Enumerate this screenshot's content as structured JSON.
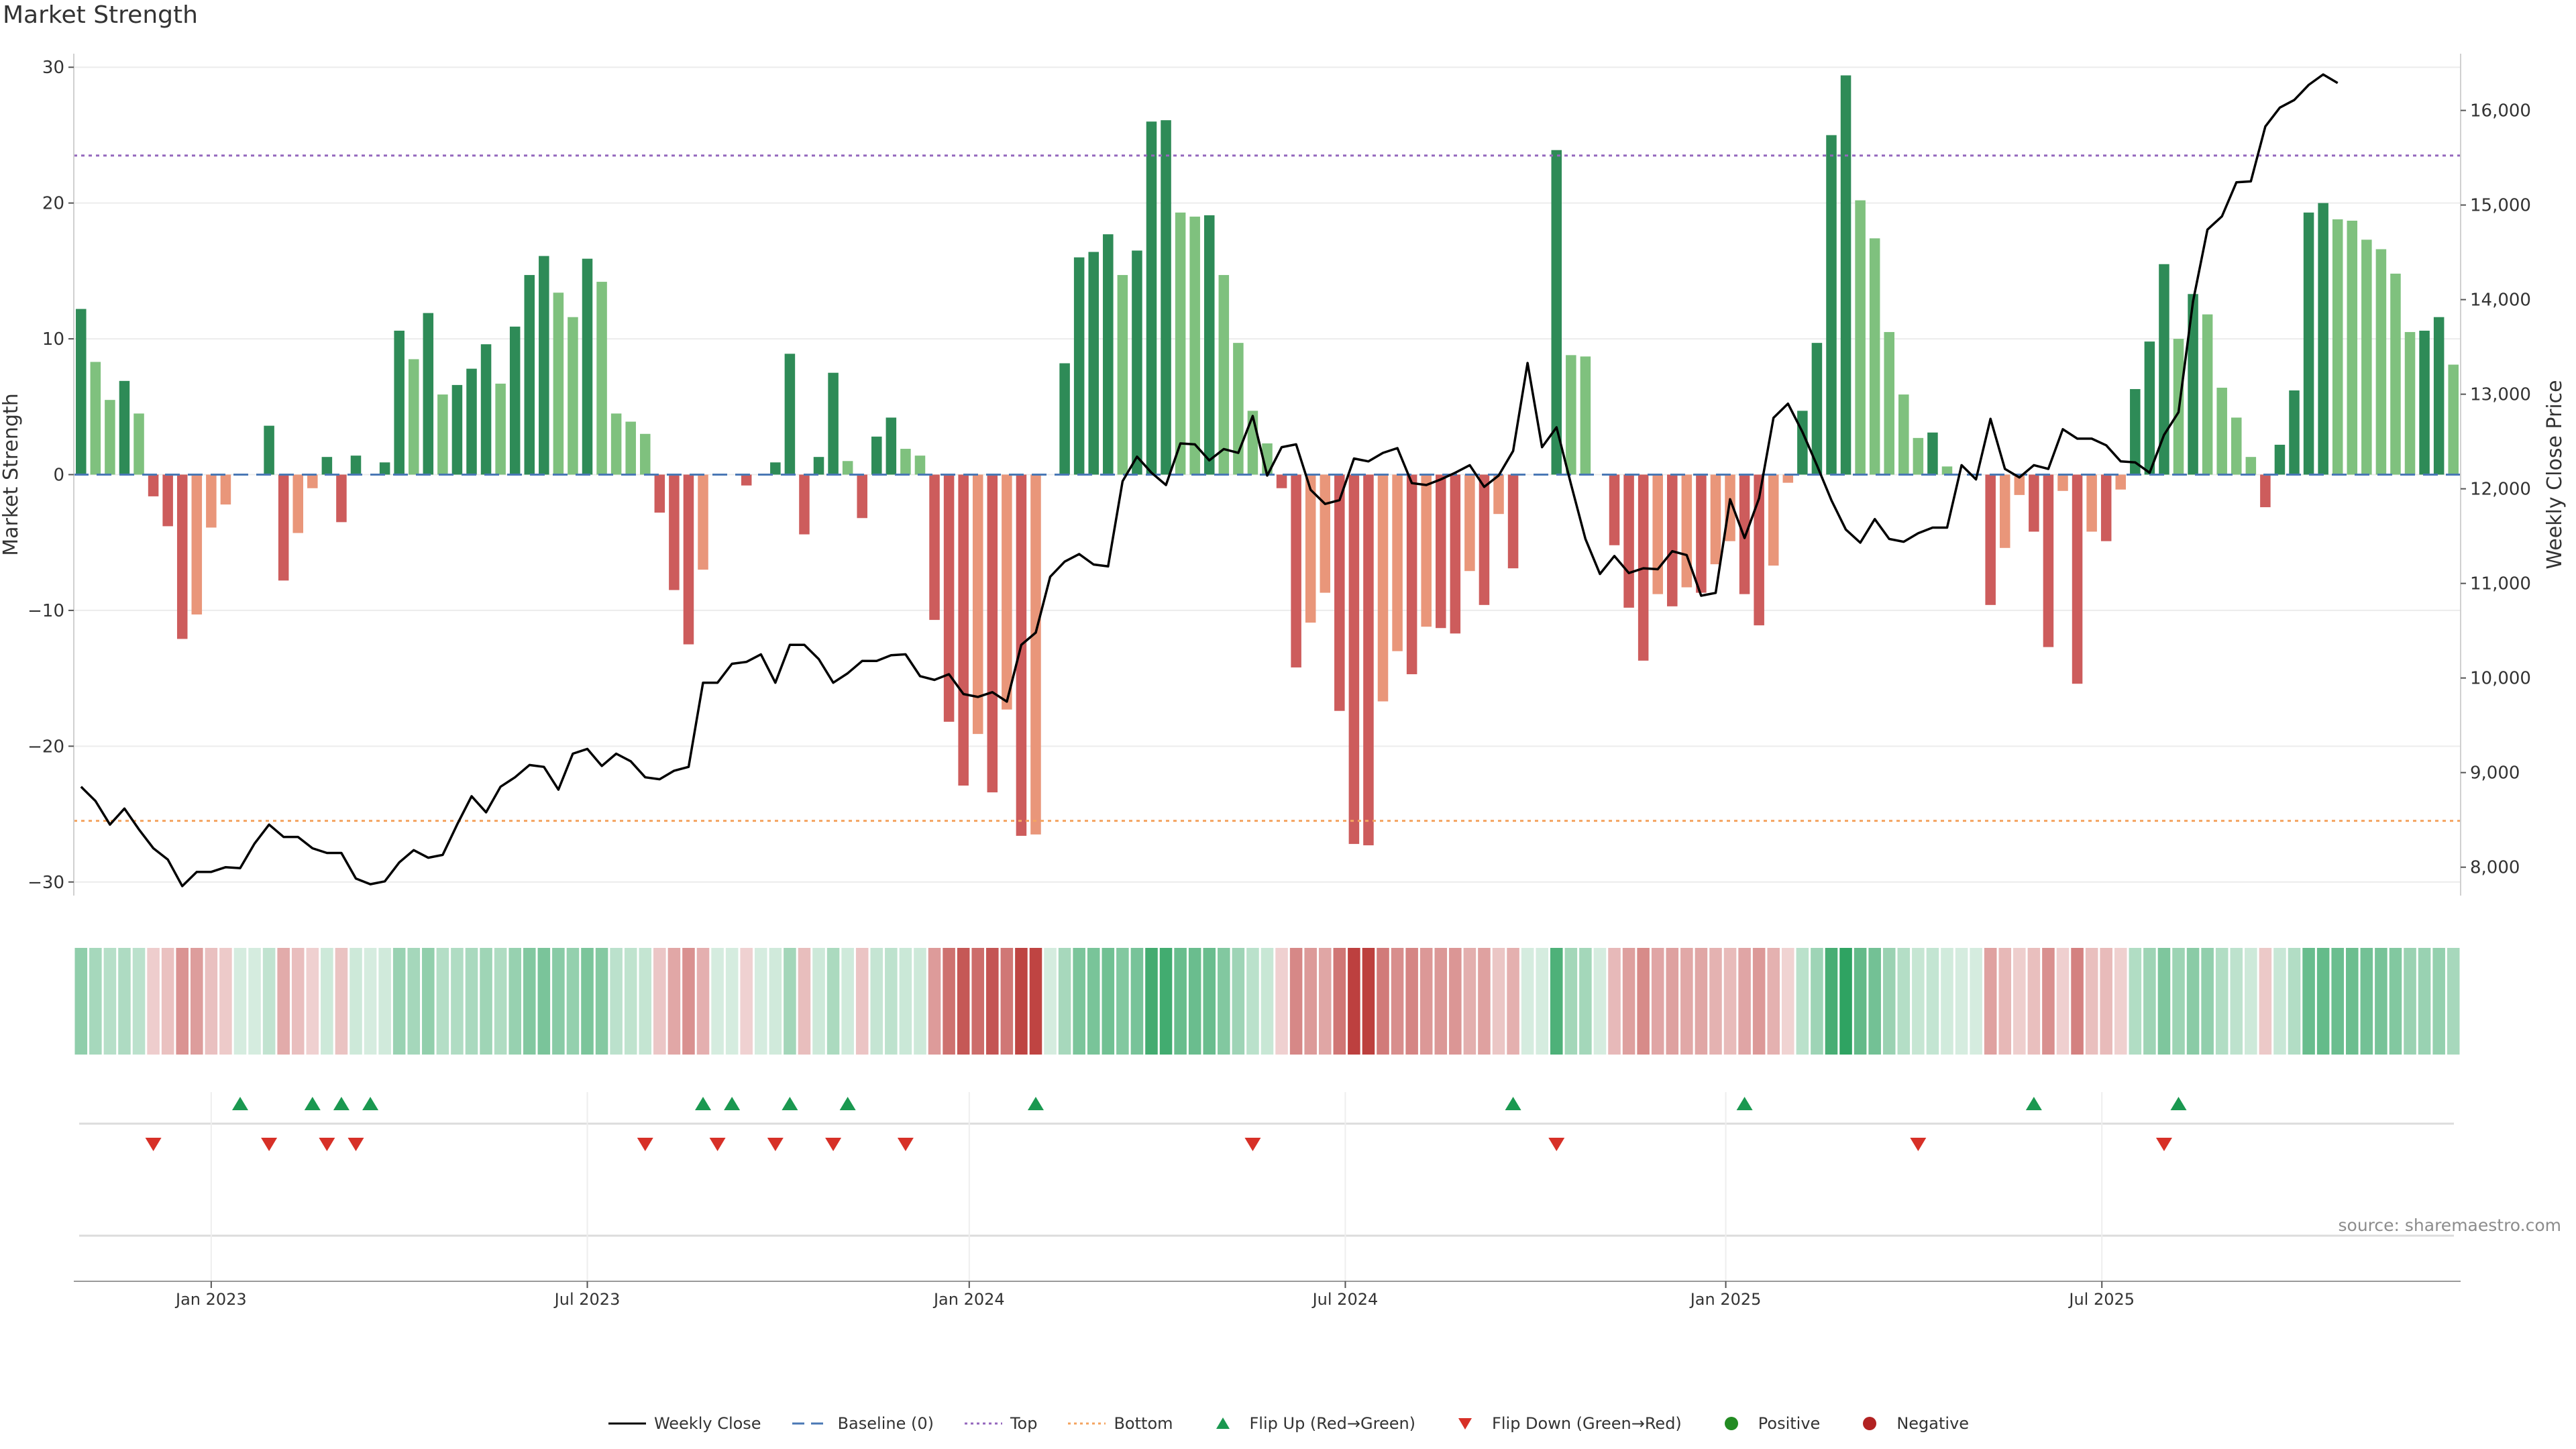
{
  "title": "Market Strength",
  "source": "source: sharemaestro.com",
  "colors": {
    "pos_strong": "#2e8b57",
    "pos_weak": "#7fc17e",
    "neg_strong": "#cd5c5c",
    "neg_weak": "#e9967a",
    "line": "#000000",
    "baseline": "#4a78b5",
    "top": "#9467bd",
    "bottom": "#f4a460",
    "flip_up": "#1a9850",
    "flip_down": "#d73027",
    "positive": "#228b22",
    "negative": "#b22222",
    "grid": "#ececec",
    "axis": "#d0d0d0"
  },
  "chart_data": {
    "type": "bar+line",
    "title": "Market Strength",
    "ylabel": "Market Strength",
    "y2label": "Weekly Close Price",
    "ylim": [
      -31,
      31
    ],
    "y2lim": [
      7700,
      16600
    ],
    "yticks": [
      30,
      20,
      10,
      0,
      -10,
      -20,
      -30
    ],
    "yticklabels": [
      "30",
      "20",
      "10",
      "0",
      "−10",
      "−20",
      "−30"
    ],
    "y2ticks": [
      8000,
      9000,
      10000,
      11000,
      12000,
      13000,
      14000,
      15000,
      16000
    ],
    "y2ticklabels": [
      "8,000",
      "9,000",
      "10,000",
      "11,000",
      "12,000",
      "13,000",
      "14,000",
      "15,000",
      "16,000"
    ],
    "xticks": [
      {
        "label": "Jan 2023",
        "index": 9
      },
      {
        "label": "Jul 2023",
        "index": 35
      },
      {
        "label": "Jan 2024",
        "index": 61.4
      },
      {
        "label": "Jul 2024",
        "index": 87.4
      },
      {
        "label": "Jan 2025",
        "index": 113.7
      },
      {
        "label": "Jul 2025",
        "index": 139.7
      }
    ],
    "top_line": 23.5,
    "bottom_line": -25.5,
    "strength": [
      12.2,
      8.3,
      5.5,
      6.9,
      4.5,
      -1.6,
      -3.8,
      -12.1,
      -10.3,
      -3.9,
      -2.2,
      0,
      0,
      3.6,
      -7.8,
      -4.3,
      -1,
      1.3,
      -3.5,
      1.4,
      0,
      0.9,
      10.6,
      8.5,
      11.9,
      5.9,
      6.6,
      7.8,
      9.6,
      6.7,
      10.9,
      14.7,
      16.1,
      13.4,
      11.6,
      15.9,
      14.2,
      4.5,
      3.9,
      3,
      -2.8,
      -8.5,
      -12.5,
      -7,
      0,
      0,
      -0.8,
      0,
      0.9,
      8.9,
      -4.4,
      1.3,
      7.5,
      1,
      -3.2,
      2.8,
      4.2,
      1.9,
      1.4,
      -10.7,
      -18.2,
      -22.9,
      -19.1,
      -23.4,
      -17.3,
      -26.6,
      -26.5,
      0,
      8.2,
      16,
      16.4,
      17.7,
      14.7,
      16.5,
      26,
      26.1,
      19.3,
      19,
      19.1,
      14.7,
      9.7,
      4.7,
      2.3,
      -1,
      -14.2,
      -10.9,
      -8.7,
      -17.4,
      -27.2,
      -27.3,
      -16.7,
      -13,
      -14.7,
      -11.2,
      -11.3,
      -11.7,
      -7.1,
      -9.6,
      -2.9,
      -6.9,
      0,
      0,
      23.9,
      8.8,
      8.7,
      0,
      -5.2,
      -9.8,
      -13.7,
      -8.8,
      -9.7,
      -8.3,
      -8.7,
      -6.6,
      -4.9,
      -8.8,
      -11.1,
      -6.7,
      -0.6,
      4.7,
      9.7,
      25,
      29.4,
      20.2,
      17.4,
      10.5,
      5.9,
      2.7,
      3.1,
      0.6,
      0,
      0,
      -9.6,
      -5.4,
      -1.5,
      -4.2,
      -12.7,
      -1.2,
      -15.4,
      -4.2,
      -4.9,
      -1.1,
      6.3,
      9.8,
      15.5,
      10,
      13.3,
      11.8,
      6.4,
      4.2,
      1.3,
      -2.4,
      2.2,
      6.2,
      19.3,
      20,
      18.8,
      18.7,
      17.3,
      16.6,
      14.8,
      10.5,
      10.6,
      11.6,
      8.1
    ],
    "close": [
      8850,
      8700,
      8450,
      8620,
      8400,
      8200,
      8080,
      7800,
      7950,
      7950,
      8000,
      7990,
      8250,
      8450,
      8320,
      8320,
      8200,
      8150,
      8150,
      7880,
      7820,
      7850,
      8050,
      8180,
      8100,
      8130,
      8450,
      8750,
      8580,
      8850,
      8950,
      9080,
      9060,
      8820,
      9200,
      9250,
      9070,
      9200,
      9120,
      8950,
      8930,
      9020,
      9060,
      9950,
      9950,
      10150,
      10170,
      10250,
      9950,
      10350,
      10350,
      10200,
      9950,
      10050,
      10180,
      10180,
      10240,
      10250,
      10020,
      9980,
      10040,
      9830,
      9800,
      9850,
      9750,
      10350,
      10480,
      11070,
      11230,
      11310,
      11200,
      11180,
      12080,
      12340,
      12170,
      12040,
      12480,
      12470,
      12300,
      12420,
      12380,
      12770,
      12140,
      12440,
      12470,
      11990,
      11840,
      11880,
      12320,
      12290,
      12380,
      12430,
      12060,
      12040,
      12100,
      12170,
      12250,
      12020,
      12140,
      12400,
      13330,
      12440,
      12650,
      12050,
      11470,
      11100,
      11290,
      11110,
      11160,
      11150,
      11340,
      11300,
      10870,
      10900,
      11890,
      11480,
      11900,
      12750,
      12900,
      12600,
      12250,
      11880,
      11570,
      11430,
      11680,
      11470,
      11440,
      11530,
      11590,
      11590,
      12250,
      12100,
      12740,
      12210,
      12120,
      12250,
      12210,
      12630,
      12530,
      12530,
      12460,
      12290,
      12280,
      12170,
      12570,
      12810,
      13980,
      14740,
      14880,
      15240,
      15250,
      15830,
      16030,
      16110,
      16270,
      16380,
      16290
    ],
    "flip_up": [
      11,
      16,
      18,
      20,
      43,
      45,
      49,
      53,
      66,
      99,
      115,
      135,
      145
    ],
    "flip_down": [
      5,
      13,
      17,
      19,
      39,
      44,
      48,
      52,
      57,
      81,
      102,
      127,
      144
    ]
  },
  "xaxis_labels": [
    "Jan 2023",
    "Jul 2023",
    "Jan 2024",
    "Jul 2024",
    "Jan 2025",
    "Jul 2025"
  ],
  "legend": [
    {
      "label": "Weekly Close",
      "sym": "line"
    },
    {
      "label": "Baseline (0)",
      "sym": "dash"
    },
    {
      "label": "Top",
      "sym": "dot-purple"
    },
    {
      "label": "Bottom",
      "sym": "dot-orange"
    },
    {
      "label": "Flip Up (Red→Green)",
      "sym": "tri-up"
    },
    {
      "label": "Flip Down (Green→Red)",
      "sym": "tri-down"
    },
    {
      "label": "Positive",
      "sym": "circle-pos"
    },
    {
      "label": "Negative",
      "sym": "circle-neg"
    }
  ]
}
